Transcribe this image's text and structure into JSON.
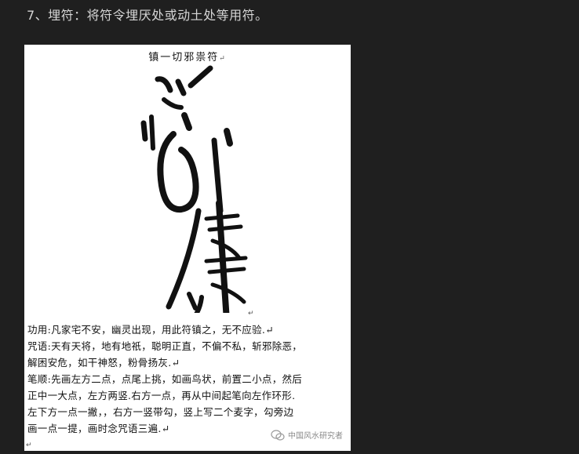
{
  "heading": "7、埋符：将符令埋厌处或动土处等用符。",
  "document": {
    "title": "镇一切邪祟符",
    "para_mark": "↵",
    "lines": [
      "功用:凡家宅不安，幽灵出现，用此符镇之，无不应验.↵",
      "咒语:天有天将，地有地祇，聪明正直，不偏不私，斩邪除恶，",
      "解困安危，如干神怒，粉骨扬灰.↵",
      "笔顺:先画左方二点，点尾上挑，如画鸟状，前置二小点，然后",
      "正中一大点，左方两竖.右方一点，再从中间起笔向左作环形.",
      "左下方一点一撇，，右方一竖带勾，竖上写二个麦字，勾旁边",
      "画一点一提，画时念咒语三遍.↵"
    ],
    "end_mark": "↵"
  },
  "watermark": {
    "icon": "wechat-icon",
    "text": "中国风水研究者"
  }
}
